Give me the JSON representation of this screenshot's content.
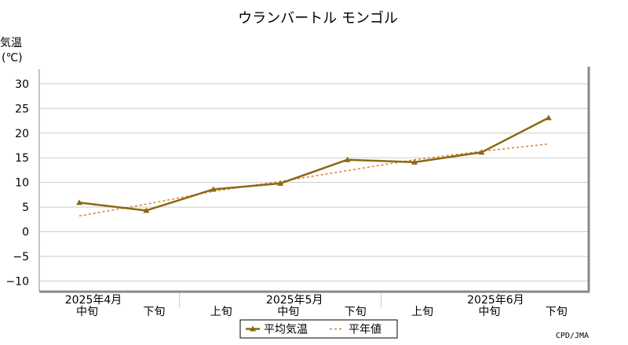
{
  "colors": {
    "observed": "#8b6914",
    "normal": "#e07b2a",
    "grid": "#cccccc",
    "frame": "#888888"
  },
  "credit": "CPD/JMA",
  "chart_data": {
    "type": "line",
    "title": "ウランバートル モンゴル",
    "ylabel_line1": "気温",
    "ylabel_line2": "(℃)",
    "ylim": [
      -12,
      33
    ],
    "yticks": [
      30,
      25,
      20,
      15,
      10,
      5,
      0,
      -5,
      -10
    ],
    "ytick_labels": [
      "30",
      "25",
      "20",
      "15",
      "10",
      "5",
      "0",
      "−5",
      "−10"
    ],
    "categories": [
      "中旬",
      "下旬",
      "上旬",
      "中旬",
      "下旬",
      "上旬",
      "中旬",
      "下旬"
    ],
    "months": [
      {
        "label": "2025年4月",
        "index": 0
      },
      {
        "label": "2025年5月",
        "index": 3
      },
      {
        "label": "2025年6月",
        "index": 6
      }
    ],
    "grid": true,
    "legend_position": "bottom-center",
    "series": [
      {
        "name": "平均気温",
        "style": "solid-triangle",
        "values": [
          5.9,
          4.3,
          8.6,
          9.8,
          14.6,
          14.1,
          16.1,
          23.1
        ]
      },
      {
        "name": "平年値",
        "style": "dotted",
        "values": [
          3.2,
          5.6,
          8.2,
          10.2,
          12.4,
          14.6,
          16.3,
          17.8
        ]
      }
    ]
  }
}
